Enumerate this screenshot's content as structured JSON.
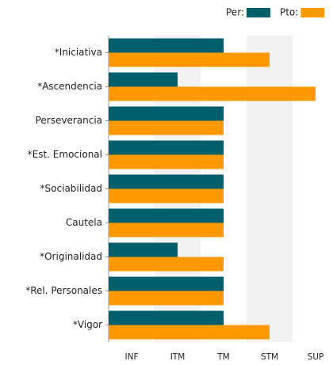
{
  "chart_data": {
    "type": "bar",
    "orientation": "horizontal",
    "categories": [
      "*Iniciativa",
      "*Ascendencia",
      "Perseverancia",
      "*Est. Emocional",
      "*Sociabilidad",
      "Cautela",
      "*Originalidad",
      "*Rel. Personales",
      "*Vigor"
    ],
    "series": [
      {
        "name": "Per:",
        "color": "#005f6a",
        "values": [
          3,
          2,
          3,
          3,
          3,
          3,
          2,
          3,
          3
        ]
      },
      {
        "name": "Pto:",
        "color": "#ff9900",
        "values": [
          4,
          5,
          3,
          3,
          3,
          3,
          3,
          3,
          4
        ]
      }
    ],
    "xlim": [
      0.5,
      5.5
    ],
    "xticks": [
      {
        "value": 1,
        "label": "INF"
      },
      {
        "value": 2,
        "label": "ITM"
      },
      {
        "value": 3,
        "label": "TM"
      },
      {
        "value": 4,
        "label": "STM"
      },
      {
        "value": 5,
        "label": "SUP"
      }
    ],
    "legend": "top-right"
  }
}
